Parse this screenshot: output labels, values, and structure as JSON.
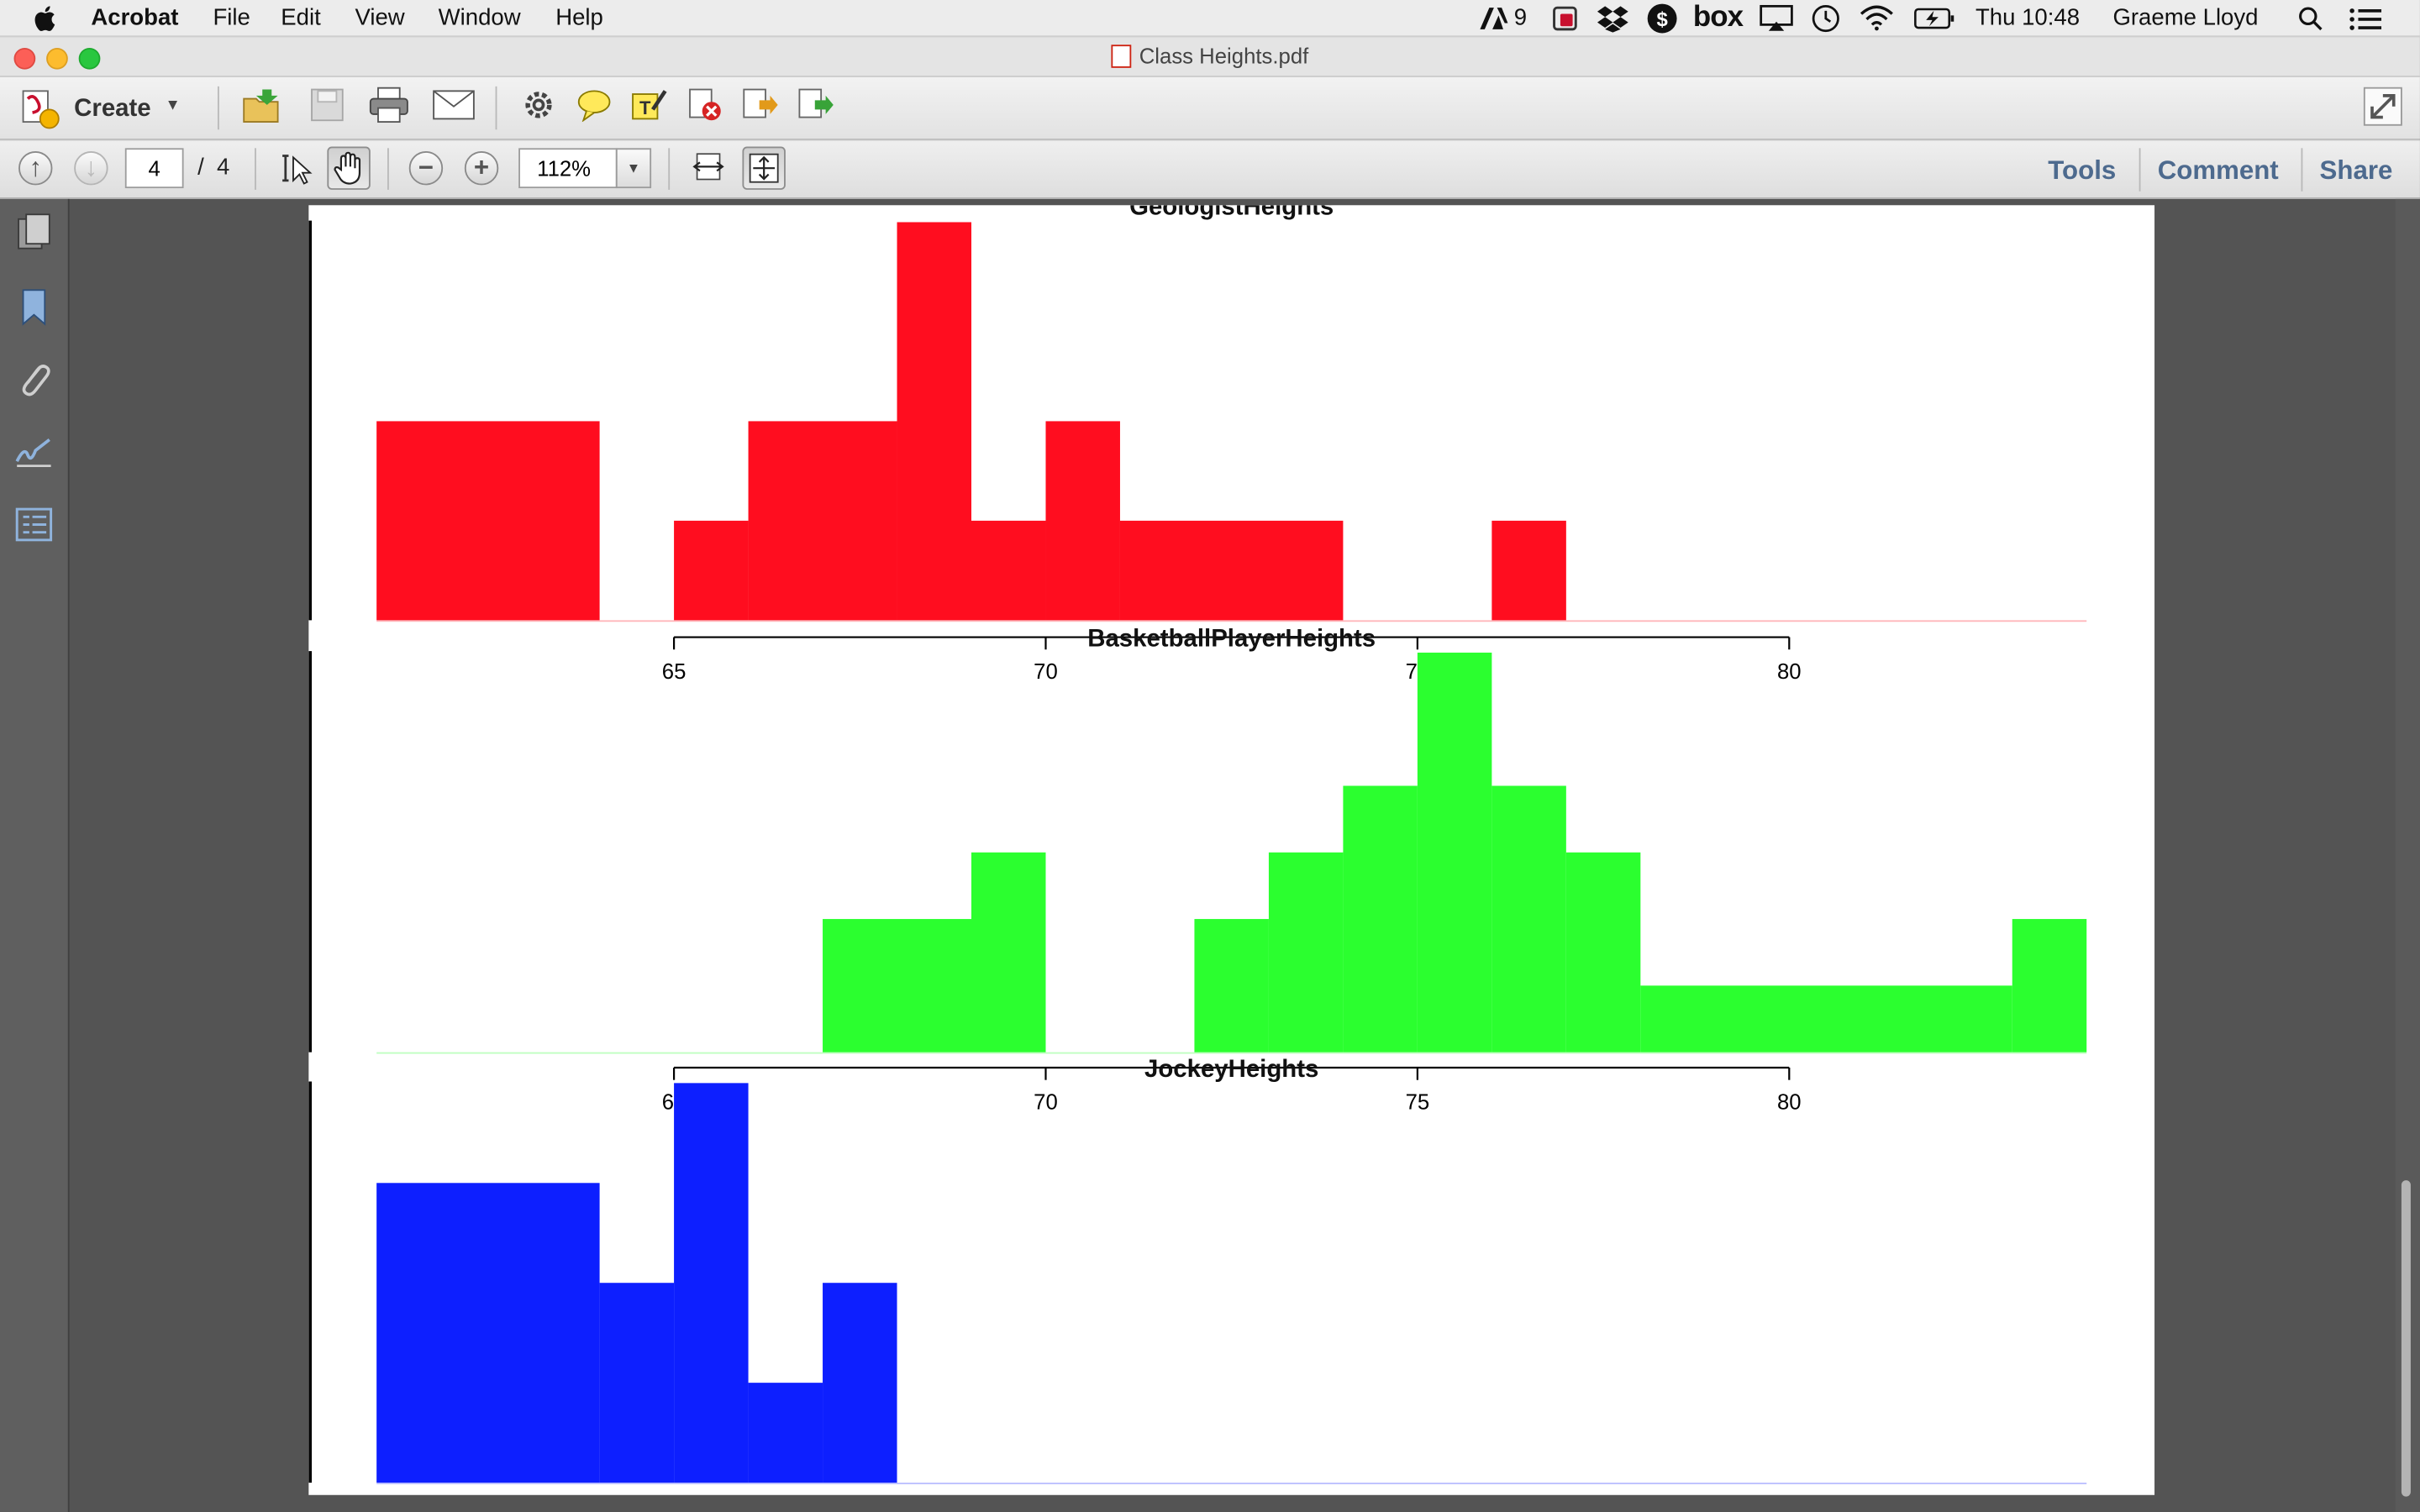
{
  "menubar": {
    "app": "Acrobat",
    "menus": [
      "File",
      "Edit",
      "View",
      "Window",
      "Help"
    ],
    "adobe_count": "9",
    "box": "box",
    "clock": "Thu 10:48",
    "user": "Graeme Lloyd"
  },
  "window": {
    "title": "Class Heights.pdf"
  },
  "toolbar": {
    "create_label": "Create"
  },
  "nav": {
    "page": "4",
    "page_total": "/  4",
    "zoom": "112%"
  },
  "links": {
    "tools": "Tools",
    "comment": "Comment",
    "share": "Share"
  },
  "colors": {
    "geologist": "#ff0d1f",
    "basketball": "#2bff2f",
    "jockey": "#0d1fff",
    "accent": "#4d6a8e"
  },
  "icons": [
    "apple-icon",
    "adobe-icon",
    "acrobat-badge-icon",
    "dropbox-icon",
    "evernote-icon",
    "box-icon",
    "airplay-icon",
    "time-machine-icon",
    "wifi-icon",
    "battery-icon",
    "spotlight-icon",
    "notification-center-icon",
    "create-icon",
    "open-folder-icon",
    "save-icon",
    "print-icon",
    "email-icon",
    "settings-icon",
    "comment-bubble-icon",
    "highlight-icon",
    "delete-icon",
    "export-icon",
    "share-icon",
    "fullscreen-icon",
    "prev-page-icon",
    "next-page-icon",
    "select-icon",
    "hand-icon",
    "zoom-out-icon",
    "zoom-in-icon",
    "fit-page-icon",
    "fit-width-icon",
    "pages-icon",
    "bookmarks-icon",
    "attachments-icon",
    "signatures-icon",
    "layers-icon"
  ],
  "chart_data": [
    {
      "type": "bar",
      "title": "GeologistHeights",
      "bin_width": 1,
      "bins": [
        [
          61,
          64,
          2
        ],
        [
          65,
          66,
          1
        ],
        [
          66,
          68,
          2
        ],
        [
          68,
          69,
          4
        ],
        [
          69,
          70,
          1
        ],
        [
          70,
          71,
          2
        ],
        [
          71,
          74,
          1
        ],
        [
          76,
          77,
          1
        ]
      ],
      "xlim": [
        61,
        84
      ],
      "ylim": [
        0,
        4
      ],
      "ticks": [
        65,
        70,
        75,
        80
      ],
      "tick_labels": [
        "65",
        "70",
        "75",
        "80"
      ]
    },
    {
      "type": "bar",
      "title": "BasketballPlayerHeights",
      "bin_width": 1,
      "bins": [
        [
          67,
          69,
          2
        ],
        [
          69,
          70,
          3
        ],
        [
          72,
          73,
          2
        ],
        [
          73,
          74,
          3
        ],
        [
          74,
          75,
          4
        ],
        [
          75,
          76,
          6
        ],
        [
          76,
          77,
          4
        ],
        [
          77,
          78,
          3
        ],
        [
          78,
          83,
          1
        ],
        [
          83,
          84,
          2
        ]
      ],
      "xlim": [
        61,
        84
      ],
      "ylim": [
        0,
        6
      ],
      "ticks": [
        65,
        70,
        75,
        80
      ],
      "tick_labels": [
        "65",
        "70",
        "75",
        "80"
      ]
    },
    {
      "type": "bar",
      "title": "JockeyHeights",
      "bin_width": 1,
      "bins": [
        [
          61,
          64,
          3
        ],
        [
          64,
          65,
          2
        ],
        [
          65,
          66,
          4
        ],
        [
          66,
          67,
          1
        ],
        [
          67,
          68,
          2
        ]
      ],
      "xlim": [
        61,
        84
      ],
      "ylim": [
        0,
        4
      ]
    }
  ]
}
